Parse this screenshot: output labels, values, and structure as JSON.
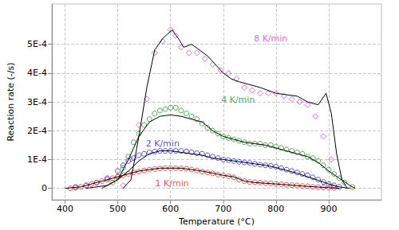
{
  "chart_data": {
    "type": "scatter",
    "x_label": "Temperature (°C)",
    "y_label": "Reaction rate (-/s)",
    "xlim": [
      375,
      1000
    ],
    "xticks": [
      400,
      500,
      600,
      700,
      800,
      900
    ],
    "ylim": [
      -4e-05,
      0.00064
    ],
    "yticks": [
      0,
      {
        "value": 0.0001,
        "label": "1E-4"
      },
      {
        "value": 0.0002,
        "label": "2E-4"
      },
      {
        "value": 0.0003,
        "label": "3E-4"
      },
      {
        "value": 0.0004,
        "label": "4E-4"
      },
      {
        "value": 0.0005,
        "label": "5E-4"
      }
    ],
    "grid": true,
    "series": [
      {
        "name": "8 K/min",
        "type": "scatter",
        "marker": "diamond",
        "color": "#e040e0",
        "x": [
          510,
          525,
          540,
          555,
          570,
          585,
          600,
          610,
          620,
          635,
          650,
          665,
          680,
          695,
          710,
          725,
          740,
          755,
          770,
          785,
          800,
          815,
          830,
          845,
          860,
          875,
          890,
          905
        ],
        "values": [
          1e-05,
          0.0001,
          0.00022,
          0.00031,
          0.00047,
          0.00051,
          0.00055,
          0.00053,
          0.00049,
          0.00047,
          0.00047,
          0.00045,
          0.00043,
          0.00041,
          0.0004,
          0.00038,
          0.00035,
          0.00034,
          0.00033,
          0.00033,
          0.00033,
          0.00032,
          0.00031,
          0.0003,
          0.00029,
          0.00025,
          0.00018,
          0.0001
        ]
      },
      {
        "type": "line",
        "color": "#000000",
        "x": [
          510,
          525,
          540,
          555,
          570,
          585,
          603,
          615,
          625,
          640,
          655,
          670,
          685,
          700,
          715,
          730,
          750,
          770,
          785,
          800,
          820,
          840,
          860,
          880,
          895,
          905,
          915,
          925,
          935
        ],
        "values": [
          0,
          3e-05,
          0.00018,
          0.00035,
          0.00048,
          0.00052,
          0.00055,
          0.00052,
          0.00049,
          0.0005,
          0.00048,
          0.00046,
          0.00043,
          0.0004,
          0.00038,
          0.00037,
          0.00036,
          0.00035,
          0.00034,
          0.00033,
          0.000325,
          0.00032,
          0.0003,
          0.00029,
          0.00033,
          0.00026,
          0.00012,
          3e-05,
          0
        ]
      },
      {
        "name": "4 K/min",
        "type": "scatter",
        "marker": "circle",
        "color": "#229922",
        "x": [
          490,
          500,
          510,
          520,
          530,
          540,
          550,
          560,
          570,
          580,
          590,
          600,
          610,
          620,
          630,
          640,
          650,
          660,
          670,
          680,
          690,
          700,
          710,
          720,
          730,
          740,
          750,
          760,
          770,
          780,
          790,
          800,
          810,
          820,
          830,
          840,
          850,
          860,
          870,
          880,
          890,
          900,
          910,
          920,
          930,
          945
        ],
        "values": [
          2e-05,
          4e-05,
          7e-05,
          0.00011,
          0.00016,
          0.00019,
          0.00022,
          0.00024,
          0.00026,
          0.00027,
          0.000275,
          0.00028,
          0.00028,
          0.00027,
          0.00026,
          0.00025,
          0.00024,
          0.000225,
          0.00021,
          0.0002,
          0.00019,
          0.00018,
          0.000175,
          0.00017,
          0.000165,
          0.00016,
          0.000155,
          0.000155,
          0.000155,
          0.00015,
          0.00015,
          0.000145,
          0.00014,
          0.000135,
          0.00013,
          0.000125,
          0.00012,
          0.00011,
          0.000105,
          9.5e-05,
          8e-05,
          6.5e-05,
          5e-05,
          3.5e-05,
          2e-05,
          5e-06
        ]
      },
      {
        "type": "line",
        "color": "#000000",
        "x": [
          470,
          500,
          520,
          540,
          560,
          580,
          600,
          620,
          640,
          660,
          680,
          700,
          720,
          740,
          760,
          780,
          800,
          820,
          840,
          860,
          880,
          900,
          920,
          940,
          950
        ],
        "values": [
          0,
          3e-05,
          0.0001,
          0.00018,
          0.00023,
          0.00025,
          0.000255,
          0.00025,
          0.00024,
          0.00023,
          0.0002,
          0.00018,
          0.00017,
          0.00016,
          0.000155,
          0.00015,
          0.00014,
          0.00013,
          0.00012,
          0.00011,
          9e-05,
          6e-05,
          3.5e-05,
          1e-05,
          0
        ]
      },
      {
        "name": "2 K/min",
        "type": "scatter",
        "marker": "circle",
        "color": "#2222ee",
        "x": [
          420,
          440,
          460,
          480,
          500,
          510,
          520,
          530,
          540,
          550,
          560,
          570,
          580,
          590,
          600,
          610,
          620,
          630,
          640,
          650,
          660,
          670,
          680,
          690,
          700,
          710,
          720,
          730,
          740,
          750,
          760,
          770,
          780,
          790,
          800,
          810,
          820,
          830,
          840,
          850,
          860,
          870,
          880,
          890,
          900,
          910,
          920
        ],
        "values": [
          5e-06,
          1e-05,
          2e-05,
          3.5e-05,
          6e-05,
          8e-05,
          9.5e-05,
          0.000105,
          0.000115,
          0.00012,
          0.000125,
          0.000128,
          0.00013,
          0.00013,
          0.00013,
          0.00013,
          0.00013,
          0.000128,
          0.000125,
          0.000122,
          0.00012,
          0.000115,
          0.00011,
          0.000105,
          0.0001,
          9.8e-05,
          9.5e-05,
          9.2e-05,
          9e-05,
          8.8e-05,
          8.5e-05,
          8.2e-05,
          8e-05,
          7.8e-05,
          7.5e-05,
          7e-05,
          6.5e-05,
          6e-05,
          5.5e-05,
          5e-05,
          4.5e-05,
          3.8e-05,
          3e-05,
          2.2e-05,
          1.5e-05,
          1e-05,
          5e-06
        ]
      },
      {
        "type": "line",
        "color": "#000000",
        "x": [
          440,
          480,
          500,
          520,
          540,
          560,
          580,
          600,
          620,
          640,
          660,
          680,
          700,
          720,
          740,
          760,
          780,
          800,
          820,
          840,
          860,
          880,
          900,
          920,
          940
        ],
        "values": [
          0,
          1e-05,
          3e-05,
          6e-05,
          9.5e-05,
          0.00012,
          0.00013,
          0.00013,
          0.000125,
          0.00012,
          0.000115,
          0.000105,
          0.0001,
          9.5e-05,
          9e-05,
          8.5e-05,
          8e-05,
          7.2e-05,
          6.2e-05,
          5.2e-05,
          4e-05,
          2.8e-05,
          1.5e-05,
          5e-06,
          0
        ]
      },
      {
        "name": "1 K/min",
        "type": "scatter",
        "marker": "circle",
        "color": "#ee2222",
        "x": [
          410,
          420,
          430,
          440,
          450,
          460,
          470,
          480,
          490,
          500,
          510,
          520,
          530,
          540,
          550,
          560,
          570,
          580,
          590,
          600,
          610,
          620,
          630,
          640,
          650,
          660,
          670,
          680,
          690,
          700,
          710,
          720,
          730,
          740,
          750,
          760,
          770,
          780,
          790,
          800,
          810,
          820,
          830,
          840,
          850,
          860,
          870,
          880,
          890,
          900,
          910
        ],
        "values": [
          0,
          2e-06,
          5e-06,
          1e-05,
          1.5e-05,
          2e-05,
          2.5e-05,
          3e-05,
          3.5e-05,
          4e-05,
          4.5e-05,
          5e-05,
          5.5e-05,
          5.8e-05,
          6.2e-05,
          6.5e-05,
          6.7e-05,
          6.9e-05,
          7e-05,
          7e-05,
          7e-05,
          6.9e-05,
          6.8e-05,
          6.5e-05,
          6.2e-05,
          5.8e-05,
          5.5e-05,
          5.2e-05,
          4.8e-05,
          4.5e-05,
          4.2e-05,
          3.8e-05,
          3e-05,
          2.5e-05,
          2.2e-05,
          2.1e-05,
          2e-05,
          1.8e-05,
          1.7e-05,
          1.5e-05,
          1.4e-05,
          1.2e-05,
          1.1e-05,
          1e-05,
          8e-06,
          7e-06,
          5e-06,
          4e-06,
          3e-06,
          2e-06,
          1e-06
        ]
      },
      {
        "type": "line",
        "color": "#000000",
        "x": [
          400,
          430,
          460,
          500,
          540,
          580,
          620,
          660,
          700,
          720,
          740,
          760,
          800,
          850,
          900,
          920
        ],
        "values": [
          0,
          5e-06,
          2e-05,
          4e-05,
          6e-05,
          7e-05,
          7e-05,
          6e-05,
          4.5e-05,
          4e-05,
          2.5e-05,
          2e-05,
          1.5e-05,
          8e-06,
          2e-06,
          0
        ]
      }
    ],
    "annotations": [
      {
        "text": "8 K/min",
        "x": 790,
        "y": 0.00052,
        "color": "#e040e0"
      },
      {
        "text": "4 K/min",
        "x": 728,
        "y": 0.000308,
        "color": "#229922"
      },
      {
        "text": "2 K/min",
        "x": 585,
        "y": 0.000154,
        "color": "#2222ee"
      },
      {
        "text": "1 K/min",
        "x": 603,
        "y": 1.7e-05,
        "color": "#ee2222"
      }
    ]
  }
}
